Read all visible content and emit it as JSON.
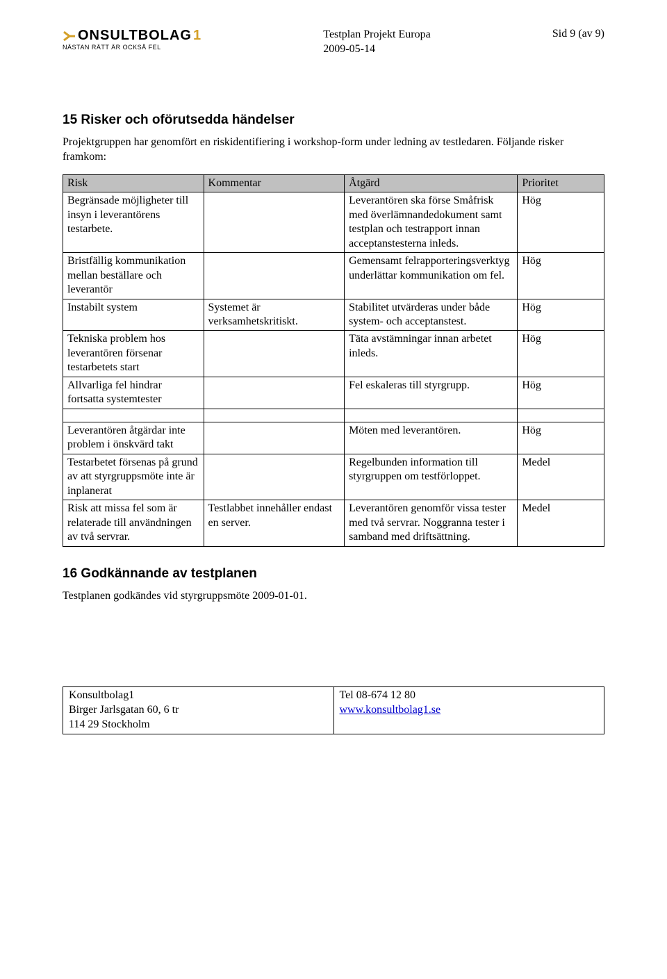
{
  "header": {
    "logo_text": "ONSULTBOLAG",
    "logo_one": "1",
    "logo_tagline": "NÄSTAN RÄTT ÄR OCKSÅ FEL",
    "doc_title": "Testplan Projekt Europa",
    "doc_date": "2009-05-14",
    "page_info": "Sid 9 (av 9)"
  },
  "section15": {
    "heading": "15 Risker och oförutsedda händelser",
    "p1": "Projektgruppen har genomfört en riskidentifiering i workshop-form under ledning av testledaren. Följande risker framkom:"
  },
  "risk_table": {
    "columns": [
      "Risk",
      "Kommentar",
      "Åtgärd",
      "Prioritet"
    ],
    "rows1": [
      [
        "Begränsade möjligheter till insyn i leverantörens testarbete.",
        "",
        "Leverantören ska förse Småfrisk med överlämnandedokument samt testplan och testrapport innan acceptanstesterna inleds.",
        "Hög"
      ],
      [
        "Bristfällig kommunikation mellan beställare och leverantör",
        "",
        "Gemensamt felrapporteringsverktyg underlättar kommunikation om fel.",
        "Hög"
      ],
      [
        "Instabilt system",
        "Systemet är verksamhetskritiskt.",
        "Stabilitet utvärderas under både system- och acceptanstest.",
        "Hög"
      ],
      [
        "Tekniska problem hos leverantören försenar testarbetets start",
        "",
        "Täta avstämningar innan arbetet inleds.",
        "Hög"
      ],
      [
        "Allvarliga fel hindrar fortsatta systemtester",
        "",
        "Fel eskaleras till styrgrupp.",
        "Hög"
      ]
    ],
    "rows2": [
      [
        "Leverantören åtgärdar inte problem i önskvärd takt",
        "",
        "Möten med leverantören.",
        "Hög"
      ],
      [
        "Testarbetet försenas på grund av att styrgruppsmöte inte är inplanerat",
        "",
        "Regelbunden information till styrgruppen om testförloppet.",
        "Medel"
      ],
      [
        "Risk att missa fel som är relaterade till användningen av två servrar.",
        "Testlabbet innehåller endast en server.",
        "Leverantören genomför vissa tester med två servrar. Noggranna tester i samband med driftsättning.",
        "Medel"
      ]
    ],
    "header_bg": "#c0c0c0",
    "border_color": "#000000"
  },
  "section16": {
    "heading": "16 Godkännande av testplanen",
    "p1": "Testplanen godkändes vid styrgruppsmöte 2009-01-01."
  },
  "footer": {
    "company": "Konsultbolag1",
    "address1": "Birger Jarlsgatan 60, 6 tr",
    "address2": "114 29 Stockholm",
    "phone": "Tel 08-674 12 80",
    "url": "www.konsultbolag1.se"
  }
}
